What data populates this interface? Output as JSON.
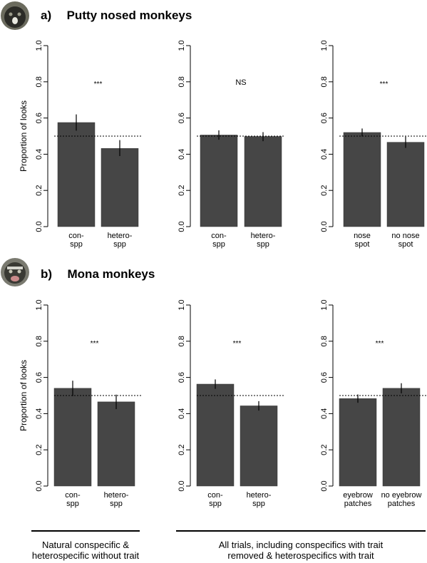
{
  "rows": [
    {
      "letter": "a)",
      "title": "Putty nosed monkeys"
    },
    {
      "letter": "b)",
      "title": "Mona monkeys"
    }
  ],
  "footer": {
    "left_line1": "Natural conspecific &",
    "left_line2": "heterospecific without trait",
    "right_line1": "All trials, including conspecifics with trait",
    "right_line2": "removed & heterospecifics with trait"
  },
  "style": {
    "bar_color": "#464646",
    "reference_line": 0.5
  },
  "chart_data": [
    {
      "type": "bar",
      "title": "",
      "ylabel": "Proportion of looks",
      "ylim": [
        0,
        1
      ],
      "yticks": [
        "0.0",
        "0.2",
        "0.4",
        "0.6",
        "0.8",
        "1.0"
      ],
      "categories": [
        "con-\nspp",
        "hetero-\nspp"
      ],
      "values": [
        0.575,
        0.432
      ],
      "errors": [
        [
          0.53,
          0.62
        ],
        [
          0.39,
          0.478
        ]
      ],
      "annotation": "***"
    },
    {
      "type": "bar",
      "title": "",
      "ylabel": "",
      "ylim": [
        0,
        1
      ],
      "yticks": [
        "0.0",
        "0.2",
        "0.4",
        "0.6",
        "0.8",
        "1.0"
      ],
      "categories": [
        "con-\nspp",
        "hetero-\nspp"
      ],
      "values": [
        0.506,
        0.498
      ],
      "errors": [
        [
          0.48,
          0.532
        ],
        [
          0.472,
          0.522
        ]
      ],
      "annotation": "NS"
    },
    {
      "type": "bar",
      "title": "",
      "ylabel": "",
      "ylim": [
        0,
        1
      ],
      "yticks": [
        "0.0",
        "0.2",
        "0.4",
        "0.6",
        "0.8",
        "1.0"
      ],
      "categories": [
        "nose\nspot",
        "no nose\nspot"
      ],
      "values": [
        0.52,
        0.466
      ],
      "errors": [
        [
          0.498,
          0.542
        ],
        [
          0.435,
          0.497
        ]
      ],
      "annotation": "***"
    },
    {
      "type": "bar",
      "title": "",
      "ylabel": "Proportion of looks",
      "ylim": [
        0,
        1
      ],
      "yticks": [
        "0.0",
        "0.2",
        "0.4",
        "0.6",
        "0.8",
        "1.0"
      ],
      "categories": [
        "con-\nspp",
        "hetero-\nspp"
      ],
      "values": [
        0.54,
        0.465
      ],
      "errors": [
        [
          0.497,
          0.582
        ],
        [
          0.425,
          0.505
        ]
      ],
      "annotation": "***"
    },
    {
      "type": "bar",
      "title": "",
      "ylabel": "",
      "ylim": [
        0,
        1
      ],
      "yticks": [
        "0.0",
        "0.2",
        "0.4",
        "0.6",
        "0.8",
        "1.0"
      ],
      "categories": [
        "con-\nspp",
        "hetero-\nspp"
      ],
      "values": [
        0.563,
        0.443
      ],
      "errors": [
        [
          0.537,
          0.589
        ],
        [
          0.417,
          0.469
        ]
      ],
      "annotation": "***"
    },
    {
      "type": "bar",
      "title": "",
      "ylabel": "",
      "ylim": [
        0,
        1
      ],
      "yticks": [
        "0.0",
        "0.2",
        "0.4",
        "0.6",
        "0.8",
        "1.0"
      ],
      "categories": [
        "eyebrow\npatches",
        "no eyebrow\npatches"
      ],
      "values": [
        0.483,
        0.54
      ],
      "errors": [
        [
          0.46,
          0.506
        ],
        [
          0.512,
          0.568
        ]
      ],
      "annotation": "***"
    }
  ]
}
